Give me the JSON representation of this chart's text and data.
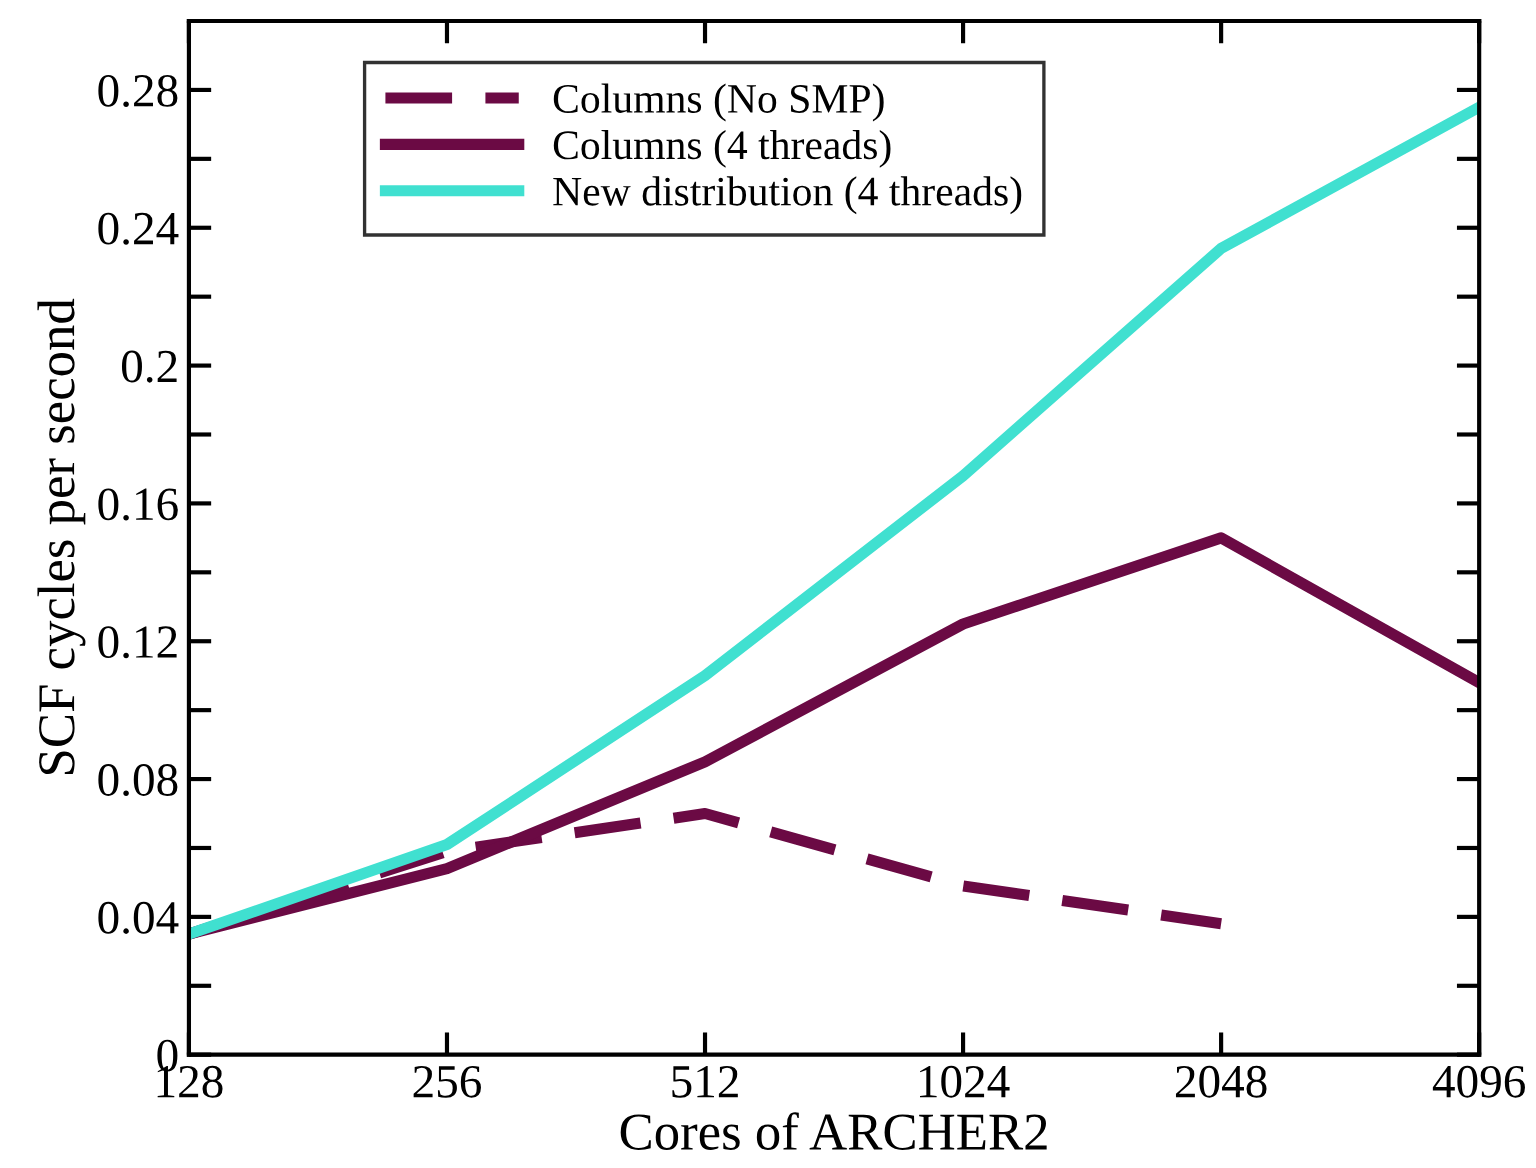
{
  "chart_data": {
    "type": "line",
    "xlabel": "Cores of ARCHER2",
    "ylabel": "SCF cycles per second",
    "log": "x",
    "xlim": [
      128,
      4096
    ],
    "xticks": [
      128,
      256,
      512,
      1024,
      2048,
      4096
    ],
    "ylim": [
      0,
      0.3
    ],
    "yticks": [
      0,
      {
        "value": 0.02,
        "label": null
      },
      0.04,
      {
        "value": 0.06,
        "label": null
      },
      0.08,
      {
        "value": 0.1,
        "label": null
      },
      0.12,
      {
        "value": 0.14,
        "label": null
      },
      0.16,
      {
        "value": 0.18,
        "label": null
      },
      0.2,
      {
        "value": 0.22,
        "label": null
      },
      0.24,
      {
        "value": 0.26,
        "label": null
      },
      0.28
    ],
    "grid": false,
    "legend": "top left",
    "marker": "none",
    "series": [
      {
        "name": "Columns (No SMP)",
        "color": "#6b0a44",
        "line_style": "dashed",
        "x": [
          128,
          256,
          512,
          1024,
          2048
        ],
        "values": [
          0.035,
          0.059,
          0.07,
          0.049,
          0.038
        ]
      },
      {
        "name": "Columns (4 threads)",
        "color": "#6b0a44",
        "line_style": "solid",
        "x": [
          128,
          256,
          512,
          1024,
          2048,
          4096
        ],
        "values": [
          0.035,
          0.054,
          0.085,
          0.125,
          0.15,
          0.108
        ]
      },
      {
        "name": "New distribution (4 threads)",
        "color": "#40e0d0",
        "line_style": "solid",
        "x": [
          128,
          256,
          512,
          1024,
          2048,
          4096
        ],
        "values": [
          0.035,
          0.061,
          0.11,
          0.168,
          0.234,
          0.275
        ]
      }
    ]
  }
}
